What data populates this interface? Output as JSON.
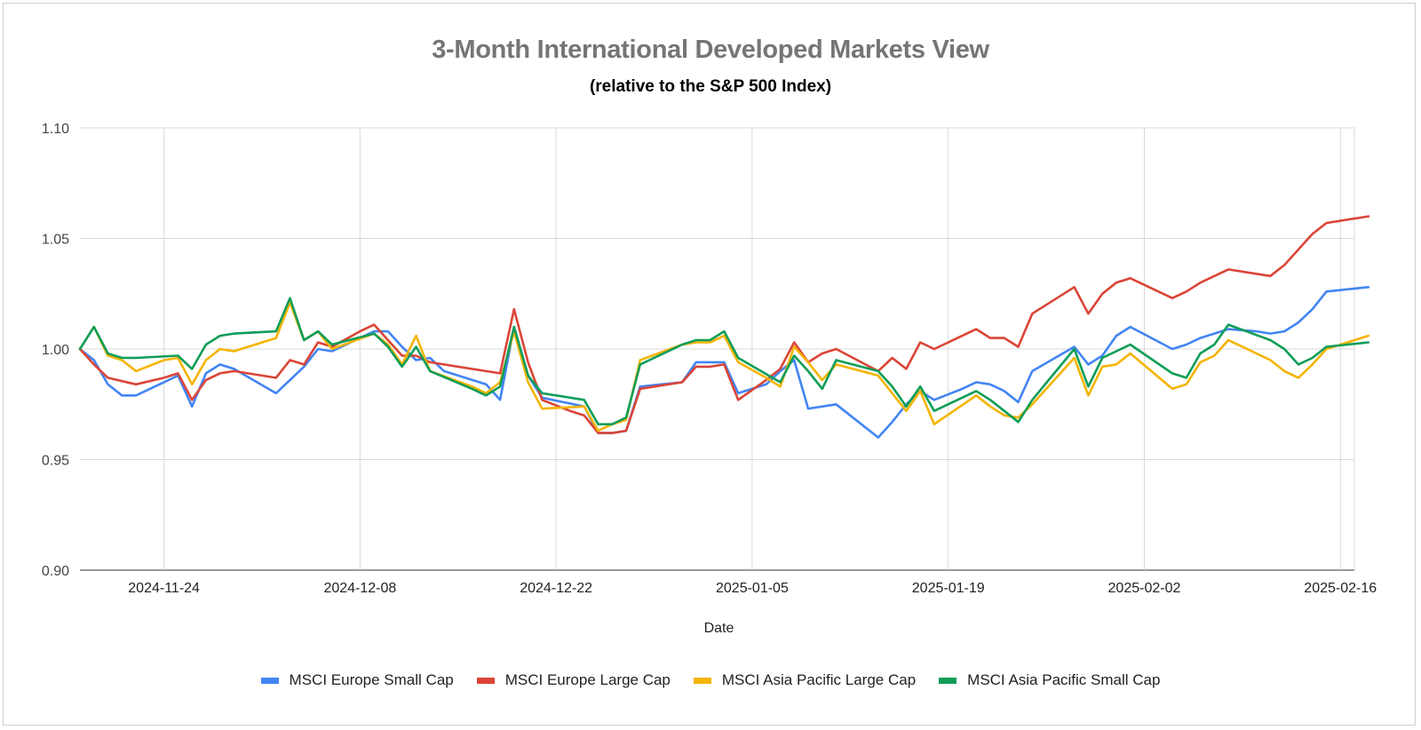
{
  "chart_data": {
    "type": "line",
    "title": "3-Month International Developed Markets View",
    "subtitle": "(relative to the S&P 500 Index)",
    "xlabel": "Date",
    "ylabel": "",
    "ylim": [
      0.9,
      1.1
    ],
    "yticks": [
      "1.10",
      "1.05",
      "1.00",
      "0.95",
      "0.90"
    ],
    "xticks": [
      "2024-11-24",
      "2024-12-08",
      "2024-12-22",
      "2025-01-05",
      "2025-01-19",
      "2025-02-02",
      "2025-02-16"
    ],
    "grid": true,
    "legend_position": "bottom",
    "x_start": "2024-11-18",
    "x_end": "2025-02-17",
    "series": [
      {
        "name": "MSCI Europe Small Cap",
        "color": "#4285F4",
        "points": [
          [
            0,
            1.0
          ],
          [
            1,
            0.995
          ],
          [
            2,
            0.984
          ],
          [
            3,
            0.979
          ],
          [
            4,
            0.979
          ],
          [
            6,
            0.985
          ],
          [
            7,
            0.988
          ],
          [
            8,
            0.974
          ],
          [
            9,
            0.989
          ],
          [
            10,
            0.993
          ],
          [
            11,
            0.991
          ],
          [
            14,
            0.98
          ],
          [
            15,
            0.986
          ],
          [
            16,
            0.992
          ],
          [
            17,
            1.0
          ],
          [
            18,
            0.999
          ],
          [
            21,
            1.008
          ],
          [
            22,
            1.008
          ],
          [
            23,
            1.001
          ],
          [
            24,
            0.995
          ],
          [
            25,
            0.996
          ],
          [
            26,
            0.99
          ],
          [
            29,
            0.984
          ],
          [
            30,
            0.977
          ],
          [
            31,
            1.01
          ],
          [
            32,
            0.988
          ],
          [
            33,
            0.978
          ],
          [
            36,
            0.974
          ],
          [
            37,
            0.962
          ],
          [
            38,
            0.962
          ],
          [
            39,
            0.963
          ],
          [
            40,
            0.983
          ],
          [
            43,
            0.985
          ],
          [
            44,
            0.994
          ],
          [
            45,
            0.994
          ],
          [
            46,
            0.994
          ],
          [
            47,
            0.98
          ],
          [
            49,
            0.984
          ],
          [
            50,
            0.99
          ],
          [
            51,
            0.995
          ],
          [
            52,
            0.973
          ],
          [
            54,
            0.975
          ],
          [
            57,
            0.96
          ],
          [
            58,
            0.967
          ],
          [
            59,
            0.975
          ],
          [
            60,
            0.981
          ],
          [
            61,
            0.977
          ],
          [
            63,
            0.982
          ],
          [
            64,
            0.985
          ],
          [
            65,
            0.984
          ],
          [
            66,
            0.981
          ],
          [
            67,
            0.976
          ],
          [
            68,
            0.99
          ],
          [
            71,
            1.001
          ],
          [
            72,
            0.993
          ],
          [
            73,
            0.997
          ],
          [
            74,
            1.006
          ],
          [
            75,
            1.01
          ],
          [
            78,
            1.0
          ],
          [
            79,
            1.002
          ],
          [
            80,
            1.005
          ],
          [
            81,
            1.007
          ],
          [
            82,
            1.009
          ],
          [
            84,
            1.008
          ],
          [
            85,
            1.007
          ],
          [
            86,
            1.008
          ],
          [
            87,
            1.012
          ],
          [
            88,
            1.018
          ],
          [
            89,
            1.026
          ],
          [
            92,
            1.028
          ]
        ]
      },
      {
        "name": "MSCI Europe Large Cap",
        "color": "#DB4437",
        "points": [
          [
            0,
            1.0
          ],
          [
            1,
            0.993
          ],
          [
            2,
            0.987
          ],
          [
            4,
            0.984
          ],
          [
            6,
            0.987
          ],
          [
            7,
            0.989
          ],
          [
            8,
            0.977
          ],
          [
            9,
            0.986
          ],
          [
            10,
            0.989
          ],
          [
            11,
            0.99
          ],
          [
            14,
            0.987
          ],
          [
            15,
            0.995
          ],
          [
            16,
            0.993
          ],
          [
            17,
            1.003
          ],
          [
            18,
            1.001
          ],
          [
            20,
            1.008
          ],
          [
            21,
            1.011
          ],
          [
            22,
            1.004
          ],
          [
            23,
            0.997
          ],
          [
            24,
            0.997
          ],
          [
            25,
            0.994
          ],
          [
            26,
            0.993
          ],
          [
            29,
            0.99
          ],
          [
            30,
            0.989
          ],
          [
            31,
            1.018
          ],
          [
            32,
            0.994
          ],
          [
            33,
            0.977
          ],
          [
            35,
            0.972
          ],
          [
            36,
            0.97
          ],
          [
            37,
            0.962
          ],
          [
            38,
            0.962
          ],
          [
            39,
            0.963
          ],
          [
            40,
            0.982
          ],
          [
            43,
            0.985
          ],
          [
            44,
            0.992
          ],
          [
            45,
            0.992
          ],
          [
            46,
            0.993
          ],
          [
            47,
            0.977
          ],
          [
            49,
            0.986
          ],
          [
            50,
            0.991
          ],
          [
            51,
            1.003
          ],
          [
            52,
            0.994
          ],
          [
            53,
            0.998
          ],
          [
            54,
            1.0
          ],
          [
            57,
            0.99
          ],
          [
            58,
            0.996
          ],
          [
            59,
            0.991
          ],
          [
            60,
            1.003
          ],
          [
            61,
            1.0
          ],
          [
            64,
            1.009
          ],
          [
            65,
            1.005
          ],
          [
            66,
            1.005
          ],
          [
            67,
            1.001
          ],
          [
            68,
            1.016
          ],
          [
            71,
            1.028
          ],
          [
            72,
            1.016
          ],
          [
            73,
            1.025
          ],
          [
            74,
            1.03
          ],
          [
            75,
            1.032
          ],
          [
            78,
            1.023
          ],
          [
            79,
            1.026
          ],
          [
            80,
            1.03
          ],
          [
            81,
            1.033
          ],
          [
            82,
            1.036
          ],
          [
            85,
            1.033
          ],
          [
            86,
            1.038
          ],
          [
            87,
            1.045
          ],
          [
            88,
            1.052
          ],
          [
            89,
            1.057
          ],
          [
            92,
            1.06
          ]
        ]
      },
      {
        "name": "MSCI Asia Pacific Large Cap",
        "color": "#F4B400",
        "points": [
          [
            0,
            1.0
          ],
          [
            1,
            1.01
          ],
          [
            2,
            0.997
          ],
          [
            3,
            0.995
          ],
          [
            4,
            0.99
          ],
          [
            6,
            0.995
          ],
          [
            7,
            0.996
          ],
          [
            8,
            0.984
          ],
          [
            9,
            0.995
          ],
          [
            10,
            1.0
          ],
          [
            11,
            0.999
          ],
          [
            14,
            1.005
          ],
          [
            15,
            1.021
          ],
          [
            16,
            1.004
          ],
          [
            17,
            1.008
          ],
          [
            18,
            1.0
          ],
          [
            21,
            1.007
          ],
          [
            22,
            1.002
          ],
          [
            23,
            0.993
          ],
          [
            24,
            1.006
          ],
          [
            25,
            0.99
          ],
          [
            28,
            0.983
          ],
          [
            29,
            0.98
          ],
          [
            30,
            0.985
          ],
          [
            31,
            1.008
          ],
          [
            32,
            0.985
          ],
          [
            33,
            0.973
          ],
          [
            36,
            0.974
          ],
          [
            37,
            0.963
          ],
          [
            38,
            0.966
          ],
          [
            39,
            0.968
          ],
          [
            40,
            0.995
          ],
          [
            43,
            1.002
          ],
          [
            44,
            1.003
          ],
          [
            45,
            1.003
          ],
          [
            46,
            1.006
          ],
          [
            47,
            0.994
          ],
          [
            49,
            0.987
          ],
          [
            50,
            0.983
          ],
          [
            51,
            1.001
          ],
          [
            52,
            0.994
          ],
          [
            53,
            0.986
          ],
          [
            54,
            0.993
          ],
          [
            57,
            0.988
          ],
          [
            58,
            0.98
          ],
          [
            59,
            0.972
          ],
          [
            60,
            0.981
          ],
          [
            61,
            0.966
          ],
          [
            64,
            0.979
          ],
          [
            65,
            0.974
          ],
          [
            66,
            0.97
          ],
          [
            67,
            0.969
          ],
          [
            68,
            0.975
          ],
          [
            71,
            0.996
          ],
          [
            72,
            0.979
          ],
          [
            73,
            0.992
          ],
          [
            74,
            0.993
          ],
          [
            75,
            0.998
          ],
          [
            78,
            0.982
          ],
          [
            79,
            0.984
          ],
          [
            80,
            0.994
          ],
          [
            81,
            0.997
          ],
          [
            82,
            1.004
          ],
          [
            85,
            0.995
          ],
          [
            86,
            0.99
          ],
          [
            87,
            0.987
          ],
          [
            88,
            0.993
          ],
          [
            89,
            1.0
          ],
          [
            92,
            1.006
          ]
        ]
      },
      {
        "name": "MSCI Asia Pacific Small Cap",
        "color": "#0F9D58",
        "points": [
          [
            0,
            1.0
          ],
          [
            1,
            1.01
          ],
          [
            2,
            0.998
          ],
          [
            3,
            0.996
          ],
          [
            4,
            0.996
          ],
          [
            7,
            0.997
          ],
          [
            8,
            0.991
          ],
          [
            9,
            1.002
          ],
          [
            10,
            1.006
          ],
          [
            11,
            1.007
          ],
          [
            14,
            1.008
          ],
          [
            15,
            1.023
          ],
          [
            16,
            1.004
          ],
          [
            17,
            1.008
          ],
          [
            18,
            1.002
          ],
          [
            21,
            1.007
          ],
          [
            22,
            1.001
          ],
          [
            23,
            0.992
          ],
          [
            24,
            1.001
          ],
          [
            25,
            0.99
          ],
          [
            28,
            0.982
          ],
          [
            29,
            0.979
          ],
          [
            30,
            0.983
          ],
          [
            31,
            1.01
          ],
          [
            32,
            0.988
          ],
          [
            33,
            0.98
          ],
          [
            36,
            0.977
          ],
          [
            37,
            0.966
          ],
          [
            38,
            0.966
          ],
          [
            39,
            0.969
          ],
          [
            40,
            0.993
          ],
          [
            43,
            1.002
          ],
          [
            44,
            1.004
          ],
          [
            45,
            1.004
          ],
          [
            46,
            1.008
          ],
          [
            47,
            0.996
          ],
          [
            50,
            0.985
          ],
          [
            51,
            0.997
          ],
          [
            52,
            0.99
          ],
          [
            53,
            0.982
          ],
          [
            54,
            0.995
          ],
          [
            57,
            0.99
          ],
          [
            58,
            0.983
          ],
          [
            59,
            0.974
          ],
          [
            60,
            0.983
          ],
          [
            61,
            0.972
          ],
          [
            64,
            0.981
          ],
          [
            65,
            0.977
          ],
          [
            66,
            0.972
          ],
          [
            67,
            0.967
          ],
          [
            68,
            0.977
          ],
          [
            71,
            1.0
          ],
          [
            72,
            0.983
          ],
          [
            73,
            0.996
          ],
          [
            74,
            0.999
          ],
          [
            75,
            1.002
          ],
          [
            78,
            0.989
          ],
          [
            79,
            0.987
          ],
          [
            80,
            0.998
          ],
          [
            81,
            1.002
          ],
          [
            82,
            1.011
          ],
          [
            85,
            1.004
          ],
          [
            86,
            1.0
          ],
          [
            87,
            0.993
          ],
          [
            88,
            0.996
          ],
          [
            89,
            1.001
          ],
          [
            92,
            1.003
          ]
        ]
      }
    ]
  }
}
